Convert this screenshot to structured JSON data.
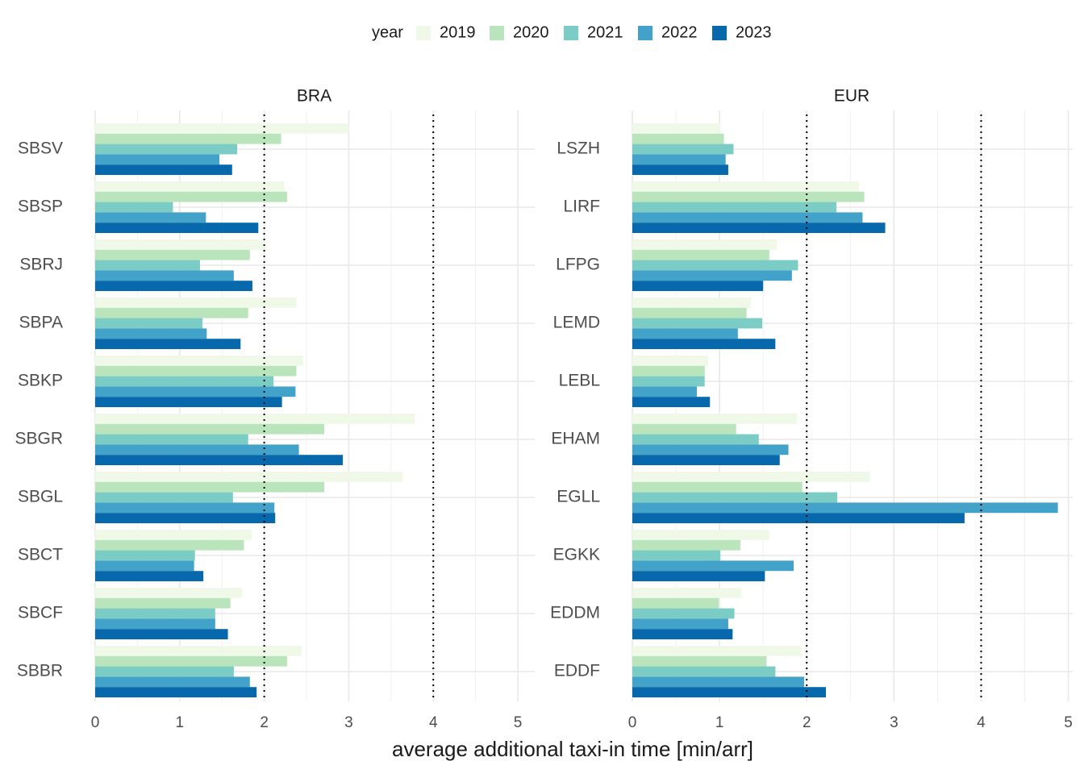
{
  "chart_data": {
    "type": "bar",
    "orientation": "horizontal",
    "xlabel": "average additional taxi-in time [min/arr]",
    "ylabel": "",
    "legend": {
      "title": "year",
      "position": "top",
      "entries": [
        "2019",
        "2020",
        "2021",
        "2022",
        "2023"
      ]
    },
    "colors": {
      "2019": "#F0F9E8",
      "2020": "#BAE4BC",
      "2021": "#7BCCC4",
      "2022": "#43A2CA",
      "2023": "#0868AC"
    },
    "grid": true,
    "reference_lines": [
      2,
      4
    ],
    "panels": [
      {
        "name": "BRA",
        "xlim": [
          0,
          5.2
        ],
        "xticks": [
          "0",
          "1",
          "2",
          "3",
          "4",
          "5"
        ],
        "categories": [
          "SBSV",
          "SBSP",
          "SBRJ",
          "SBPA",
          "SBKP",
          "SBGR",
          "SBGL",
          "SBCT",
          "SBCF",
          "SBBR"
        ],
        "series": [
          {
            "name": "2019",
            "values": [
              3.0,
              2.24,
              2.0,
              2.38,
              2.46,
              3.78,
              3.64,
              1.85,
              1.74,
              2.44
            ]
          },
          {
            "name": "2020",
            "values": [
              2.2,
              2.27,
              1.83,
              1.81,
              2.38,
              2.71,
              2.71,
              1.76,
              1.6,
              2.27
            ]
          },
          {
            "name": "2021",
            "values": [
              1.68,
              0.92,
              1.24,
              1.27,
              2.11,
              1.81,
              1.63,
              1.18,
              1.42,
              1.64
            ]
          },
          {
            "name": "2022",
            "values": [
              1.47,
              1.31,
              1.64,
              1.32,
              2.37,
              2.41,
              2.12,
              1.17,
              1.42,
              1.83
            ]
          },
          {
            "name": "2023",
            "values": [
              1.62,
              1.93,
              1.86,
              1.72,
              2.21,
              2.93,
              2.13,
              1.28,
              1.57,
              1.91
            ]
          }
        ]
      },
      {
        "name": "EUR",
        "xlim": [
          0,
          5.05
        ],
        "xticks": [
          "0",
          "1",
          "2",
          "3",
          "4",
          "5"
        ],
        "categories": [
          "LSZH",
          "LIRF",
          "LFPG",
          "LEMD",
          "LEBL",
          "EHAM",
          "EGLL",
          "EGKK",
          "EDDM",
          "EDDF"
        ],
        "series": [
          {
            "name": "2019",
            "values": [
              1.01,
              2.6,
              1.66,
              1.36,
              0.87,
              1.89,
              2.72,
              1.57,
              1.25,
              1.94
            ]
          },
          {
            "name": "2020",
            "values": [
              1.05,
              2.66,
              1.57,
              1.31,
              0.83,
              1.19,
              1.95,
              1.24,
              0.99,
              1.54
            ]
          },
          {
            "name": "2021",
            "values": [
              1.16,
              2.34,
              1.9,
              1.49,
              0.83,
              1.45,
              2.35,
              1.01,
              1.17,
              1.64
            ]
          },
          {
            "name": "2022",
            "values": [
              1.07,
              2.64,
              1.83,
              1.21,
              0.74,
              1.79,
              4.88,
              1.85,
              1.1,
              1.97
            ]
          },
          {
            "name": "2023",
            "values": [
              1.1,
              2.9,
              1.5,
              1.64,
              0.89,
              1.69,
              3.81,
              1.52,
              1.15,
              2.22
            ]
          }
        ]
      }
    ]
  }
}
